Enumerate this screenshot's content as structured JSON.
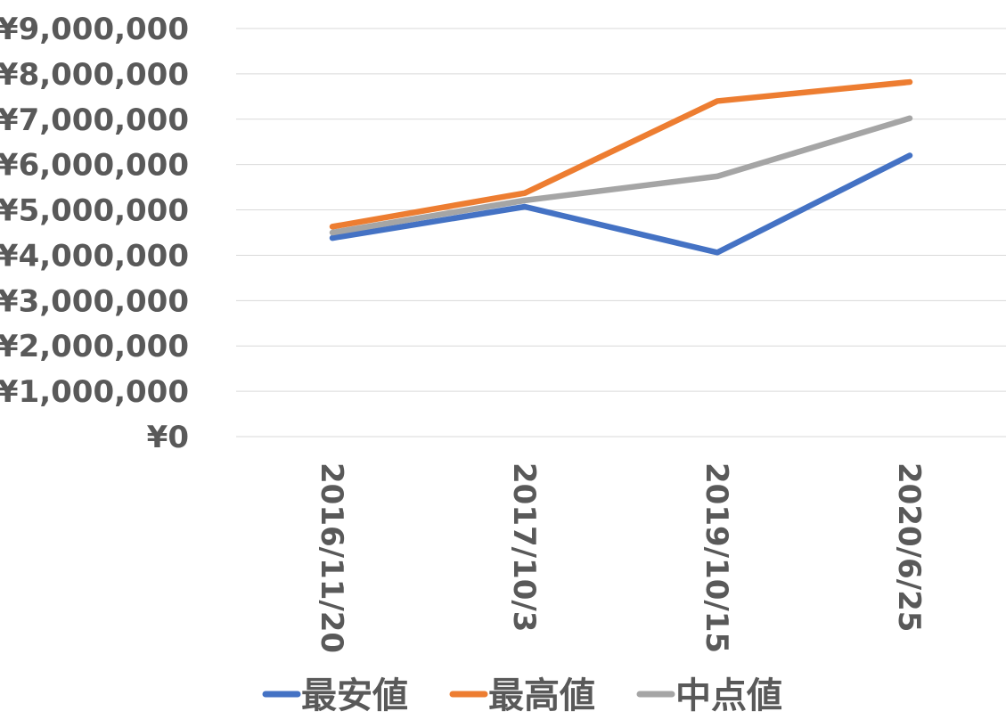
{
  "chart_data": {
    "type": "line",
    "title": "",
    "xlabel": "",
    "ylabel": "",
    "categories": [
      "2016/11/20",
      "2017/10/3",
      "2019/10/15",
      "2020/6/25"
    ],
    "ylim": [
      0,
      9000000
    ],
    "yticks": [
      0,
      1000000,
      2000000,
      3000000,
      4000000,
      5000000,
      6000000,
      7000000,
      8000000,
      9000000
    ],
    "ytick_labels": [
      "¥0",
      "¥1,000,000",
      "¥2,000,000",
      "¥3,000,000",
      "¥4,000,000",
      "¥5,000,000",
      "¥6,000,000",
      "¥7,000,000",
      "¥8,000,000",
      "¥9,000,000"
    ],
    "grid": true,
    "legend_position": "bottom",
    "series": [
      {
        "name": "最安値",
        "color": "#4472c4",
        "values": [
          4380000,
          5070000,
          4060000,
          6200000
        ]
      },
      {
        "name": "最高値",
        "color": "#ed7d31",
        "values": [
          4630000,
          5370000,
          7400000,
          7820000
        ]
      },
      {
        "name": "中点値",
        "color": "#a5a5a5",
        "values": [
          4500000,
          5210000,
          5740000,
          7020000
        ]
      }
    ]
  }
}
